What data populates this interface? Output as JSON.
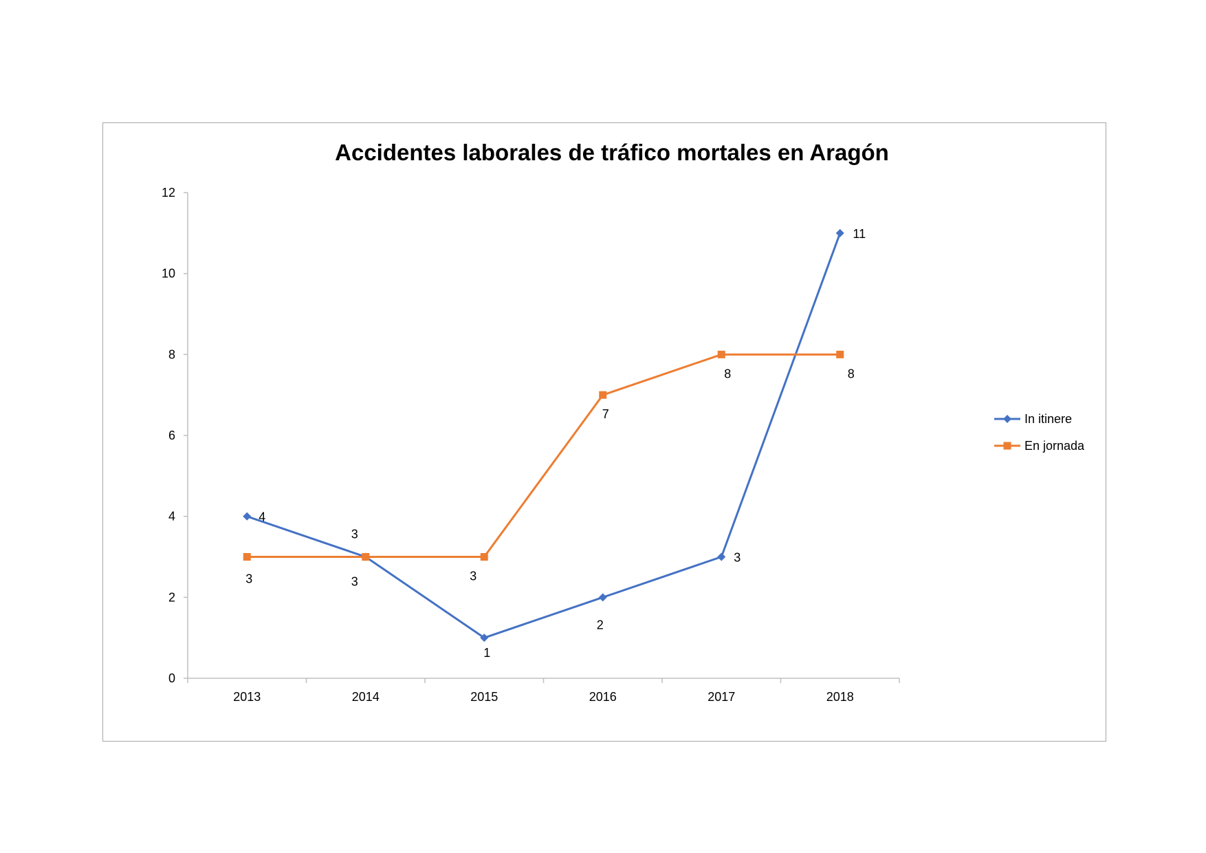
{
  "chart_data": {
    "type": "line",
    "title": "Accidentes laborales de tráfico mortales en Aragón",
    "categories": [
      "2013",
      "2014",
      "2015",
      "2016",
      "2017",
      "2018"
    ],
    "series": [
      {
        "name": "In itinere",
        "values": [
          4,
          3,
          1,
          2,
          3,
          11
        ],
        "color": "#4472c4",
        "marker": "diamond"
      },
      {
        "name": "En jornada",
        "values": [
          3,
          3,
          3,
          7,
          8,
          8
        ],
        "color": "#ed7d31",
        "marker": "square"
      }
    ],
    "ylim": [
      0,
      12
    ],
    "yticks": [
      "0",
      "2",
      "4",
      "6",
      "8",
      "10",
      "12"
    ],
    "xlabel": "",
    "ylabel": "",
    "grid": false,
    "legend_position": "right"
  }
}
